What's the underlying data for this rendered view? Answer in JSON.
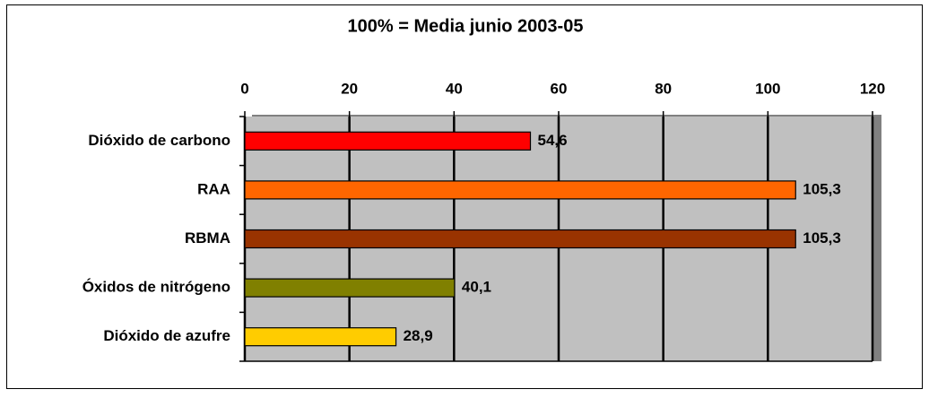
{
  "chart_data": {
    "type": "bar",
    "orientation": "horizontal",
    "title": "100% = Media junio 2003-05",
    "categories": [
      "Dióxido de carbono",
      "RAA",
      "RBMA",
      "Óxidos de nitrógeno",
      "Dióxido de azufre"
    ],
    "values": [
      54.6,
      105.3,
      105.3,
      40.1,
      28.9
    ],
    "value_labels": [
      "54,6",
      "105,3",
      "105,3",
      "40,1",
      "28,9"
    ],
    "colors": [
      "#ff0000",
      "#ff6600",
      "#993300",
      "#808000",
      "#ffcc00"
    ],
    "xlim": [
      0,
      120
    ],
    "xticks": [
      0,
      20,
      40,
      60,
      80,
      100,
      120
    ],
    "grid": true
  }
}
